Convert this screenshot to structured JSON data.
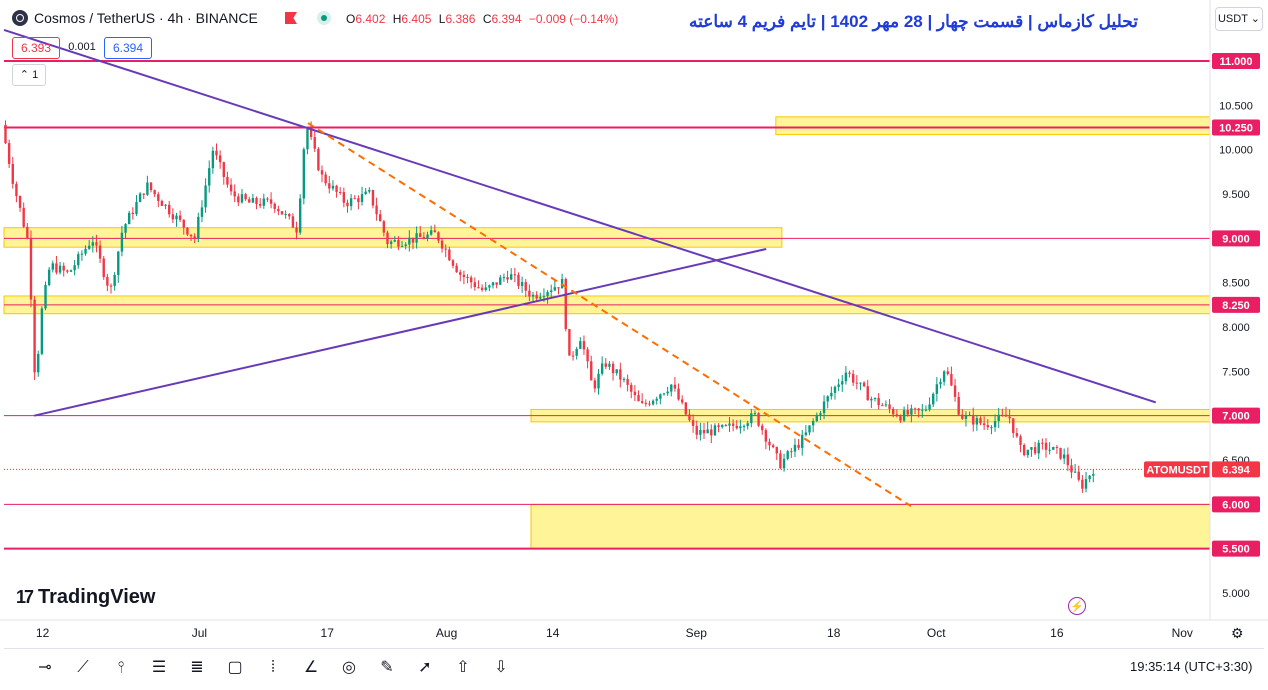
{
  "header": {
    "symbol_title": "Cosmos / TetherUS · 4h · BINANCE",
    "ohlc": [
      {
        "k": "O",
        "v": "6.402"
      },
      {
        "k": "H",
        "v": "6.405"
      },
      {
        "k": "L",
        "v": "6.386"
      },
      {
        "k": "C",
        "v": "6.394"
      }
    ],
    "change": "−0.009 (−0.14%)",
    "analysis_title": "تحلیل کازماس | قسمت چهار | 28 مهر 1402 | تایم فریم 4 ساعته",
    "currency_button": "USDT ⌄",
    "bid": "6.393",
    "spread": "0.001",
    "ask": "6.394",
    "collapse_label": "⌃  1"
  },
  "branding": {
    "logo_text": "TradingView",
    "logo_mark": "17"
  },
  "footer": {
    "clock": "19:35:14 (UTC+3:30)"
  },
  "colors": {
    "up": "#089981",
    "down": "#f23645",
    "level_line": "#e91e63",
    "level_label_bg": "#e91e63",
    "zone_fill": "#fff176",
    "trendline": "#673ab7",
    "dashed_trend": "#ff6d00",
    "price_label_bg": "#f23645",
    "analysis_title": "#1f3bd9"
  },
  "toolbar_icons": [
    "horizontal-ray-icon",
    "trend-line-icon",
    "vertical-line-icon",
    "parallel-channel-icon",
    "regression-channel-icon",
    "rectangle-icon",
    "fib-retracement-icon",
    "angle-icon",
    "circle-icon",
    "pencil-icon",
    "arrow-icon",
    "arrow-up-icon",
    "arrow-down-icon"
  ],
  "chart_data": {
    "type": "candlestick",
    "symbol": "ATOMUSDT",
    "timeframe": "4h",
    "x_ticks": [
      {
        "label": "12",
        "frac": 0.032
      },
      {
        "label": "Jul",
        "frac": 0.162
      },
      {
        "label": "17",
        "frac": 0.268
      },
      {
        "label": "Aug",
        "frac": 0.367
      },
      {
        "label": "14",
        "frac": 0.455
      },
      {
        "label": "Sep",
        "frac": 0.574
      },
      {
        "label": "18",
        "frac": 0.688
      },
      {
        "label": "Oct",
        "frac": 0.773
      },
      {
        "label": "16",
        "frac": 0.873
      },
      {
        "label": "Nov",
        "frac": 0.977
      }
    ],
    "y_ticks": [
      5.0,
      5.5,
      6.0,
      6.5,
      7.0,
      7.5,
      8.0,
      8.5,
      9.0,
      9.5,
      10.0,
      10.5
    ],
    "ylim": [
      4.75,
      11.25
    ],
    "levels": [
      {
        "value": 11.0,
        "label": "11.000",
        "zone": false
      },
      {
        "value": 10.25,
        "label": "10.250",
        "zone": true,
        "zone_range": [
          10.17,
          10.37
        ],
        "zone_x": [
          0.64,
          1.0
        ]
      },
      {
        "value": 9.0,
        "label": "9.000",
        "zone": true,
        "zone_range": [
          8.9,
          9.12
        ],
        "zone_x": [
          0.0,
          0.645
        ]
      },
      {
        "value": 8.25,
        "label": "8.250",
        "zone": true,
        "zone_range": [
          8.15,
          8.35
        ],
        "zone_x": [
          0.0,
          1.0
        ]
      },
      {
        "value": 7.0,
        "label": "7.000",
        "zone": true,
        "zone_range": [
          6.93,
          7.07
        ],
        "zone_x": [
          0.437,
          1.0
        ]
      },
      {
        "value": 6.0,
        "label": "6.000",
        "zone": true,
        "zone_range": [
          5.5,
          6.0
        ],
        "zone_x": [
          0.437,
          1.0
        ]
      },
      {
        "value": 5.5,
        "label": "5.500",
        "zone": false
      }
    ],
    "current_price": {
      "value": 6.394,
      "label": "6.394",
      "symbol_label": "ATOMUSDT"
    },
    "trendlines": [
      {
        "name": "descending",
        "from": [
          0.0,
          11.35
        ],
        "to": [
          0.955,
          7.15
        ],
        "style": "solid"
      },
      {
        "name": "ascending",
        "from": [
          0.025,
          7.0
        ],
        "to": [
          0.632,
          8.88
        ],
        "style": "solid"
      },
      {
        "name": "dashed",
        "from": [
          0.252,
          10.3
        ],
        "to": [
          0.752,
          5.98
        ],
        "style": "dashed"
      }
    ],
    "price_path": [
      [
        0.0,
        10.28
      ],
      [
        0.01,
        9.6
      ],
      [
        0.022,
        8.95
      ],
      [
        0.028,
        7.3
      ],
      [
        0.032,
        8.1
      ],
      [
        0.04,
        8.7
      ],
      [
        0.055,
        8.6
      ],
      [
        0.075,
        9.0
      ],
      [
        0.09,
        8.4
      ],
      [
        0.1,
        9.1
      ],
      [
        0.12,
        9.6
      ],
      [
        0.14,
        9.3
      ],
      [
        0.16,
        9.0
      ],
      [
        0.175,
        10.0
      ],
      [
        0.19,
        9.5
      ],
      [
        0.205,
        9.4
      ],
      [
        0.225,
        9.4
      ],
      [
        0.245,
        9.1
      ],
      [
        0.252,
        10.3
      ],
      [
        0.265,
        9.7
      ],
      [
        0.285,
        9.4
      ],
      [
        0.305,
        9.5
      ],
      [
        0.32,
        8.95
      ],
      [
        0.345,
        9.0
      ],
      [
        0.36,
        9.05
      ],
      [
        0.38,
        8.6
      ],
      [
        0.4,
        8.4
      ],
      [
        0.42,
        8.6
      ],
      [
        0.44,
        8.35
      ],
      [
        0.465,
        8.5
      ],
      [
        0.47,
        7.6
      ],
      [
        0.48,
        7.9
      ],
      [
        0.49,
        7.3
      ],
      [
        0.5,
        7.6
      ],
      [
        0.515,
        7.4
      ],
      [
        0.53,
        7.1
      ],
      [
        0.555,
        7.35
      ],
      [
        0.575,
        6.8
      ],
      [
        0.6,
        6.85
      ],
      [
        0.625,
        7.0
      ],
      [
        0.645,
        6.45
      ],
      [
        0.665,
        6.75
      ],
      [
        0.68,
        7.1
      ],
      [
        0.7,
        7.5
      ],
      [
        0.72,
        7.2
      ],
      [
        0.745,
        7.0
      ],
      [
        0.765,
        7.05
      ],
      [
        0.782,
        7.55
      ],
      [
        0.795,
        7.0
      ],
      [
        0.815,
        6.9
      ],
      [
        0.835,
        7.0
      ],
      [
        0.845,
        6.6
      ],
      [
        0.865,
        6.65
      ],
      [
        0.88,
        6.55
      ],
      [
        0.895,
        6.2
      ],
      [
        0.905,
        6.4
      ]
    ]
  }
}
